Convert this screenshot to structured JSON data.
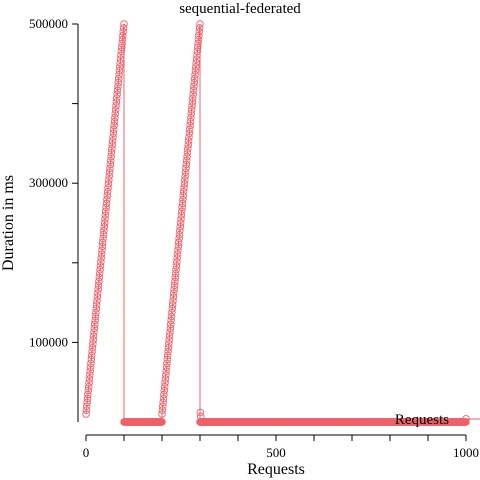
{
  "chart_data": {
    "type": "line",
    "title": "sequential-federated",
    "xlabel": "Requests",
    "ylabel": "Duration in ms",
    "xlim": [
      0,
      1000
    ],
    "ylim": [
      0,
      500000
    ],
    "x_ticks": [
      0,
      500,
      1000
    ],
    "y_ticks": [
      100000,
      300000,
      500000
    ],
    "x_minor_ticks": [
      100,
      200,
      300,
      400,
      600,
      700,
      800,
      900
    ],
    "y_minor_ticks": [
      200000,
      400000
    ],
    "grid": false,
    "legend_position": "bottom-right",
    "series": [
      {
        "name": "Requests",
        "color": "#f0606a",
        "marker": "circle-open",
        "segments": [
          {
            "x_start": 0,
            "x_end": 100,
            "y_start": 10000,
            "y_end": 500000
          },
          {
            "x_start": 100,
            "x_end": 200,
            "y_start": 0,
            "y_end": 0
          },
          {
            "x_start": 200,
            "x_end": 300,
            "y_start": 10000,
            "y_end": 500000
          },
          {
            "x_start": 300,
            "x_end": 1000,
            "y_start": 0,
            "y_end": 0
          }
        ],
        "extra_points": [
          {
            "x": 301,
            "y": 12000
          },
          {
            "x": 302,
            "y": 7000
          },
          {
            "x": 1000,
            "y": 4000
          }
        ]
      }
    ]
  }
}
